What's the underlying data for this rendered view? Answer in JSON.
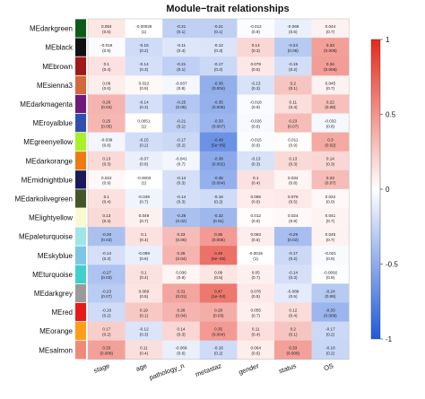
{
  "chart_data": {
    "type": "heatmap",
    "title": "Module−trait relationships",
    "columns": [
      "stage",
      "age",
      "pathology_n",
      "metastaz",
      "gender",
      "status",
      "OS"
    ],
    "rows": [
      {
        "name": "MEdarkgreen",
        "color": "#0e5a1c"
      },
      {
        "name": "MEblack",
        "color": "#111111"
      },
      {
        "name": "MEbrown",
        "color": "#a01818"
      },
      {
        "name": "MEsienna3",
        "color": "#d2693b"
      },
      {
        "name": "MEdarkmagenta",
        "color": "#6f1a7a"
      },
      {
        "name": "MEroyalblue",
        "color": "#2f4fb0"
      },
      {
        "name": "MEgreenyellow",
        "color": "#a9f02a"
      },
      {
        "name": "MEdarkorange",
        "color": "#ee7a10"
      },
      {
        "name": "MEmidnightblue",
        "color": "#1a1a5a"
      },
      {
        "name": "MEdarkolivegreen",
        "color": "#44562a"
      },
      {
        "name": "MElightyellow",
        "color": "#fafad0"
      },
      {
        "name": "MEpaleturquoise",
        "color": "#9fe6ea"
      },
      {
        "name": "MEskyblue",
        "color": "#7ec6e6"
      },
      {
        "name": "MEturquoise",
        "color": "#3fd0cc"
      },
      {
        "name": "MEdarkgrey",
        "color": "#9a9a9a"
      },
      {
        "name": "MEred",
        "color": "#e61a1a"
      },
      {
        "name": "MEorange",
        "color": "#ff9d1a"
      },
      {
        "name": "MEsalmon",
        "color": "#f08a78"
      }
    ],
    "values": [
      [
        0.084,
        -0.00026,
        -0.21,
        -0.21,
        -0.012,
        -0.069,
        0.044
      ],
      [
        -0.018,
        -0.16,
        -0.11,
        -0.12,
        0.14,
        -0.24,
        0.33
      ],
      [
        0.1,
        -0.14,
        -0.21,
        -0.17,
        0.079,
        -0.15,
        0.34
      ],
      [
        0.06,
        0.022,
        -0.037,
        -0.36,
        -0.13,
        0.2,
        0.045
      ],
      [
        0.26,
        -0.14,
        -0.25,
        -0.35,
        -0.018,
        0.11,
        0.22
      ],
      [
        0.25,
        0.0051,
        -0.21,
        -0.33,
        -0.026,
        0.23,
        -0.032
      ],
      [
        -0.039,
        -0.15,
        -0.17,
        -0.49,
        -0.015,
        0.011,
        0.3
      ],
      [
        0.13,
        -0.07,
        -0.041,
        -0.38,
        -0.13,
        0.13,
        0.14
      ],
      [
        0.022,
        -0.0003,
        -0.14,
        -0.35,
        0.1,
        0.034,
        0.23
      ],
      [
        0.1,
        -0.048,
        -0.14,
        -0.16,
        0.065,
        0.076,
        0.022
      ],
      [
        0.13,
        0.049,
        -0.28,
        -0.32,
        0.012,
        0.024,
        0.041
      ],
      [
        -0.28,
        0.1,
        0.23,
        0.35,
        0.063,
        -0.29,
        0.045
      ],
      [
        -0.14,
        -0.069,
        0.26,
        0.49,
        -0.0015,
        -0.17,
        -0.021
      ],
      [
        -0.27,
        0.1,
        0.036,
        0.09,
        0.05,
        -0.14,
        -0.0092
      ],
      [
        -0.23,
        0.089,
        0.31,
        0.47,
        0.076,
        -0.089,
        -0.24
      ],
      [
        -0.16,
        0.19,
        0.26,
        0.28,
        0.055,
        0.12,
        -0.33
      ],
      [
        0.17,
        -0.12,
        0.14,
        0.35,
        0.11,
        0.2,
        -0.17
      ],
      [
        0.33,
        0.11,
        -0.068,
        -0.16,
        0.064,
        0.33,
        -0.18
      ]
    ],
    "pvalues": [
      [
        "0.5",
        "1",
        "0.1",
        "0.1",
        "0.9",
        "0.6",
        "0.7"
      ],
      [
        "0.9",
        "0.2",
        "0.4",
        "0.3",
        "0.3",
        "0.06",
        "0.009"
      ],
      [
        "0.4",
        "0.3",
        "0.1",
        "0.2",
        "0.5",
        "0.2",
        "0.006"
      ],
      [
        "0.6",
        "0.9",
        "0.8",
        "0.004",
        "0.3",
        "0.1",
        "0.7"
      ],
      [
        "0.04",
        "0.3",
        "0.05",
        "0.006",
        "0.9",
        "0.4",
        "0.08"
      ],
      [
        "0.05",
        "1",
        "0.1",
        "0.007",
        "0.8",
        "0.07",
        "0.8"
      ],
      [
        "0.8",
        "0.2",
        "0.2",
        "5e−05",
        "0.9",
        "0.9",
        "0.02"
      ],
      [
        "0.3",
        "0.6",
        "0.7",
        "0.002",
        "0.3",
        "0.3",
        "0.3"
      ],
      [
        "0.9",
        "1",
        "0.3",
        "0.004",
        "0.4",
        "0.8",
        "0.07"
      ],
      [
        "0.4",
        "0.7",
        "0.3",
        "0.2",
        "0.6",
        "0.5",
        "0.9"
      ],
      [
        "0.3",
        "0.7",
        "0.02",
        "0.01",
        "0.9",
        "0.9",
        "0.7"
      ],
      [
        "0.03",
        "0.4",
        "0.06",
        "0.005",
        "0.6",
        "0.02",
        "0.7"
      ],
      [
        "0.3",
        "0.6",
        "0.04",
        "5e−05",
        "1",
        "0.2",
        "0.9"
      ],
      [
        "0.03",
        "0.4",
        "0.8",
        "0.5",
        "0.7",
        "0.3",
        "0.9"
      ],
      [
        "0.07",
        "0.5",
        "0.01",
        "1e−04",
        "0.5",
        "0.5",
        "0.06"
      ],
      [
        "0.2",
        "0.1",
        "0.04",
        "0.03",
        "0.7",
        "0.4",
        "0.009"
      ],
      [
        "0.2",
        "0.3",
        "0.3",
        "0.004",
        "0.4",
        "0.1",
        "0.2"
      ],
      [
        "0.008",
        "0.4",
        "0.6",
        "0.2",
        "0.6",
        "0.008",
        "0.2"
      ]
    ],
    "colorbar": {
      "min": -1,
      "max": 1,
      "ticks": [
        1,
        0.5,
        0,
        -0.5,
        -1
      ],
      "colors": {
        "low": "#1f5ad8",
        "mid": "#ffffff",
        "high": "#e32a1a"
      }
    }
  }
}
